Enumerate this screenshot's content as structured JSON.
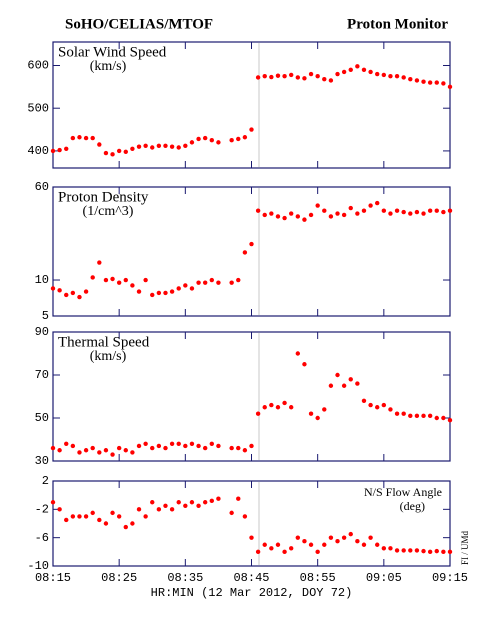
{
  "header": {
    "left": "SoHO/CELIAS/MTOF",
    "right": "Proton Monitor"
  },
  "side_label": "FI / UMd",
  "chart_data": {
    "type": "scatter",
    "color": "#ff0000",
    "xlabel": "HR:MIN (12 Mar 2012, DOY 72)",
    "xlim": [
      "08:15",
      "09:15"
    ],
    "xticks": [
      "08:15",
      "08:25",
      "08:35",
      "08:45",
      "08:55",
      "09:05",
      "09:15"
    ],
    "x": [
      "08:15",
      "08:16",
      "08:17",
      "08:18",
      "08:19",
      "08:20",
      "08:21",
      "08:22",
      "08:23",
      "08:24",
      "08:25",
      "08:26",
      "08:27",
      "08:28",
      "08:29",
      "08:30",
      "08:31",
      "08:32",
      "08:33",
      "08:34",
      "08:35",
      "08:36",
      "08:37",
      "08:38",
      "08:39",
      "08:40",
      "08:41",
      "08:42",
      "08:43",
      "08:44",
      "08:45",
      "08:46",
      "08:47",
      "08:48",
      "08:49",
      "08:50",
      "08:51",
      "08:52",
      "08:53",
      "08:54",
      "08:55",
      "08:56",
      "08:57",
      "08:58",
      "08:59",
      "09:00",
      "09:01",
      "09:02",
      "09:03",
      "09:04",
      "09:05",
      "09:06",
      "09:07",
      "09:08",
      "09:09",
      "09:10",
      "09:11",
      "09:12",
      "09:13",
      "09:14",
      "09:15"
    ],
    "panels": [
      {
        "label": [
          "Solar Wind Speed",
          "(km/s)"
        ],
        "label_corner": "left",
        "scale": "linear",
        "ylim": [
          360,
          655
        ],
        "yticks": [
          400,
          500,
          600
        ],
        "values": [
          400,
          402,
          405,
          430,
          432,
          430,
          430,
          415,
          395,
          392,
          400,
          398,
          405,
          410,
          412,
          408,
          412,
          412,
          410,
          408,
          412,
          420,
          428,
          430,
          425,
          420,
          null,
          425,
          428,
          432,
          450,
          572,
          575,
          573,
          576,
          575,
          578,
          572,
          570,
          580,
          575,
          568,
          565,
          580,
          585,
          590,
          598,
          590,
          585,
          580,
          578,
          575,
          575,
          572,
          568,
          565,
          562,
          560,
          560,
          558,
          550
        ]
      },
      {
        "label": [
          "Proton Density",
          "(1/cm^3)"
        ],
        "label_corner": "left",
        "scale": "log",
        "ylim": [
          5,
          60
        ],
        "yticks": [
          5,
          10,
          60
        ],
        "values": [
          8.5,
          8.2,
          7.5,
          7.8,
          7.2,
          8,
          10.5,
          14,
          10,
          10.2,
          9.5,
          10,
          9,
          8,
          10,
          7.5,
          7.8,
          7.8,
          8,
          8.5,
          9,
          8.5,
          9.5,
          9.5,
          10,
          9.5,
          null,
          9.5,
          10,
          17,
          20,
          38,
          35,
          36,
          34,
          33,
          36,
          34,
          32,
          35,
          42,
          38,
          34,
          36,
          35,
          40,
          36,
          38,
          42,
          44,
          38,
          36,
          38,
          37,
          36,
          37,
          36,
          38,
          38,
          37,
          38
        ]
      },
      {
        "label": [
          "Thermal Speed",
          "(km/s)"
        ],
        "label_corner": "left",
        "scale": "linear",
        "ylim": [
          30,
          90
        ],
        "yticks": [
          30,
          50,
          70,
          90
        ],
        "values": [
          36,
          35,
          38,
          37,
          34,
          35,
          36,
          34,
          35,
          33,
          36,
          35,
          34,
          37,
          38,
          36,
          37,
          36,
          38,
          38,
          37,
          38,
          37,
          36,
          38,
          37,
          null,
          36,
          36,
          35,
          37,
          52,
          55,
          56,
          55,
          57,
          55,
          80,
          75,
          52,
          50,
          54,
          65,
          70,
          65,
          68,
          66,
          58,
          56,
          55,
          56,
          54,
          52,
          52,
          51,
          51,
          51,
          51,
          50,
          50,
          49
        ]
      },
      {
        "label": [
          "N/S Flow Angle",
          "(deg)"
        ],
        "label_corner": "right",
        "scale": "linear",
        "ylim": [
          -10,
          2
        ],
        "yticks": [
          2,
          -2,
          -6,
          -10
        ],
        "values": [
          -1,
          -2,
          -3.5,
          -3,
          -3,
          -3,
          -2.5,
          -3.5,
          -4,
          -2.5,
          -3,
          -4.5,
          -4,
          -2,
          -3,
          -1,
          -2,
          -1.5,
          -2,
          -1,
          -1.5,
          -1,
          -1.5,
          -1,
          -0.8,
          -0.5,
          null,
          -2.5,
          -0.5,
          -3,
          -6,
          -8,
          -7,
          -7.5,
          -7,
          -8,
          -7.5,
          -6,
          -6.5,
          -7,
          -8,
          -7,
          -6,
          -6.5,
          -6,
          -5.5,
          -6.5,
          -7,
          -6,
          -7,
          -7.5,
          -7.5,
          -7.8,
          -7.8,
          -7.8,
          -7.8,
          -7.9,
          -8,
          -7.9,
          -8,
          -8
        ]
      }
    ]
  }
}
